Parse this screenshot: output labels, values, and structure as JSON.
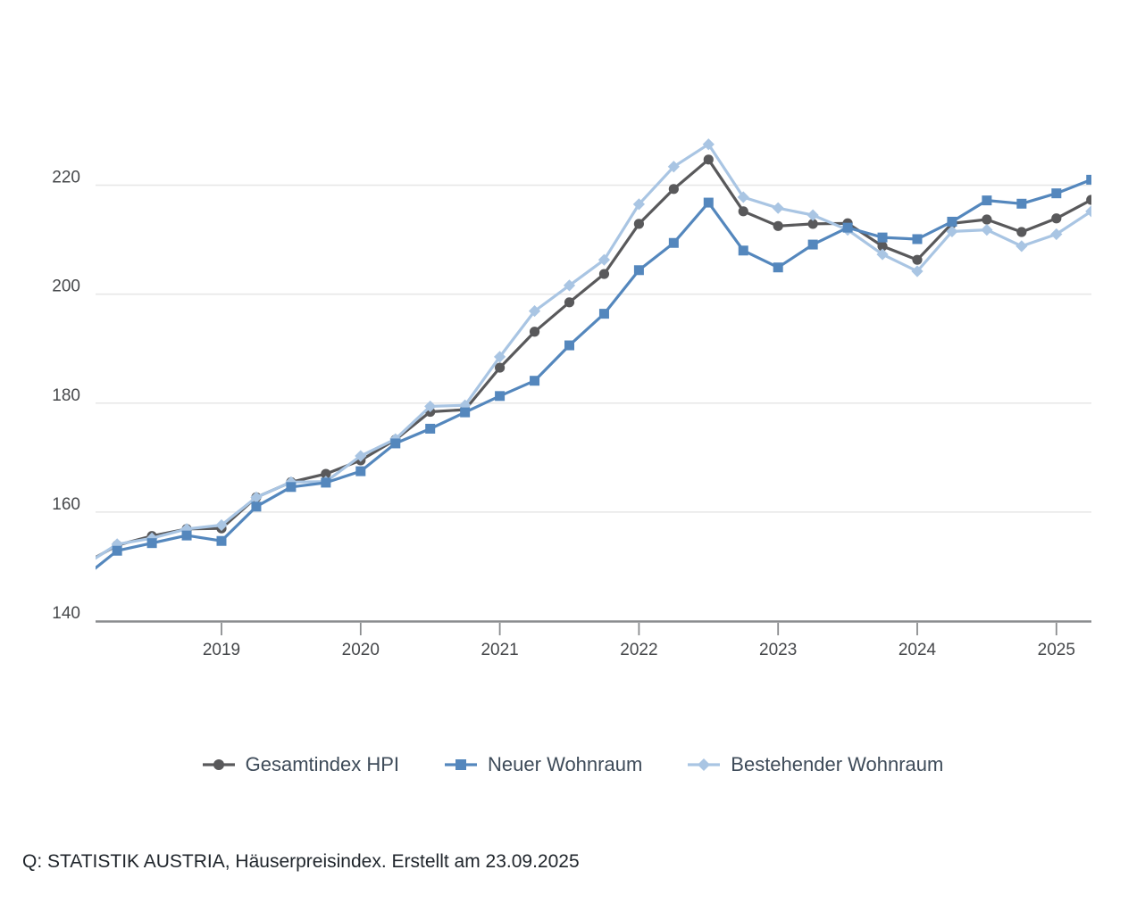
{
  "chart_data": {
    "type": "line",
    "title": "",
    "xlabel": "",
    "ylabel": "",
    "x": [
      "2018 Q1",
      "2018 Q2",
      "2018 Q3",
      "2018 Q4",
      "2019 Q1",
      "2019 Q2",
      "2019 Q3",
      "2019 Q4",
      "2020 Q1",
      "2020 Q2",
      "2020 Q3",
      "2020 Q4",
      "2021 Q1",
      "2021 Q2",
      "2021 Q3",
      "2021 Q4",
      "2022 Q1",
      "2022 Q2",
      "2022 Q3",
      "2022 Q4",
      "2023 Q1",
      "2023 Q2",
      "2023 Q3",
      "2023 Q4",
      "2024 Q1",
      "2024 Q2",
      "2024 Q3",
      "2024 Q4",
      "2025 Q1",
      "2025 Q2"
    ],
    "x_tick_labels": [
      "2019",
      "2020",
      "2021",
      "2022",
      "2023",
      "2024",
      "2025"
    ],
    "y_ticks": [
      140,
      160,
      180,
      200,
      220
    ],
    "ylim": [
      140,
      230
    ],
    "grid": "horizontal",
    "legend_position": "bottom",
    "series": [
      {
        "name": "Gesamtindex HPI",
        "marker": "circle",
        "color": "#59595b",
        "values": [
          150.3,
          153.9,
          155.6,
          156.9,
          157.0,
          162.7,
          165.5,
          167.0,
          169.5,
          173.3,
          178.4,
          178.8,
          186.5,
          193.1,
          198.5,
          203.7,
          212.9,
          219.3,
          224.7,
          215.2,
          212.5,
          212.9,
          213.0,
          208.8,
          206.3,
          213.0,
          213.7,
          211.4,
          213.9,
          217.3
        ]
      },
      {
        "name": "Neuer Wohnraum",
        "marker": "square",
        "color": "#5487bd",
        "values": [
          147.8,
          152.9,
          154.3,
          155.7,
          154.7,
          161.0,
          164.6,
          165.4,
          167.5,
          172.6,
          175.3,
          178.3,
          181.3,
          184.1,
          190.6,
          196.4,
          204.4,
          209.4,
          216.8,
          208.0,
          204.9,
          209.1,
          212.2,
          210.4,
          210.1,
          213.3,
          217.2,
          216.6,
          218.5,
          221.0
        ]
      },
      {
        "name": "Bestehender Wohnraum",
        "marker": "diamond",
        "color": "#a9c5e3",
        "values": [
          150.0,
          154.1,
          155.2,
          156.9,
          157.6,
          162.7,
          165.5,
          165.6,
          170.3,
          173.4,
          179.4,
          179.6,
          188.5,
          196.9,
          201.6,
          206.3,
          216.5,
          223.4,
          227.5,
          217.8,
          215.8,
          214.5,
          211.8,
          207.3,
          204.2,
          211.5,
          211.8,
          208.8,
          211.0,
          215.2
        ]
      }
    ]
  },
  "source_note": "Q: STATISTIK AUSTRIA, Häuserpreisindex. Erstellt am 23.09.2025",
  "colors": {
    "grid": "#e7e7e7",
    "axis": "#8a8c8e",
    "tick_text": "#46484b",
    "legend_text": "#3e4b59",
    "background": "#ffffff"
  }
}
